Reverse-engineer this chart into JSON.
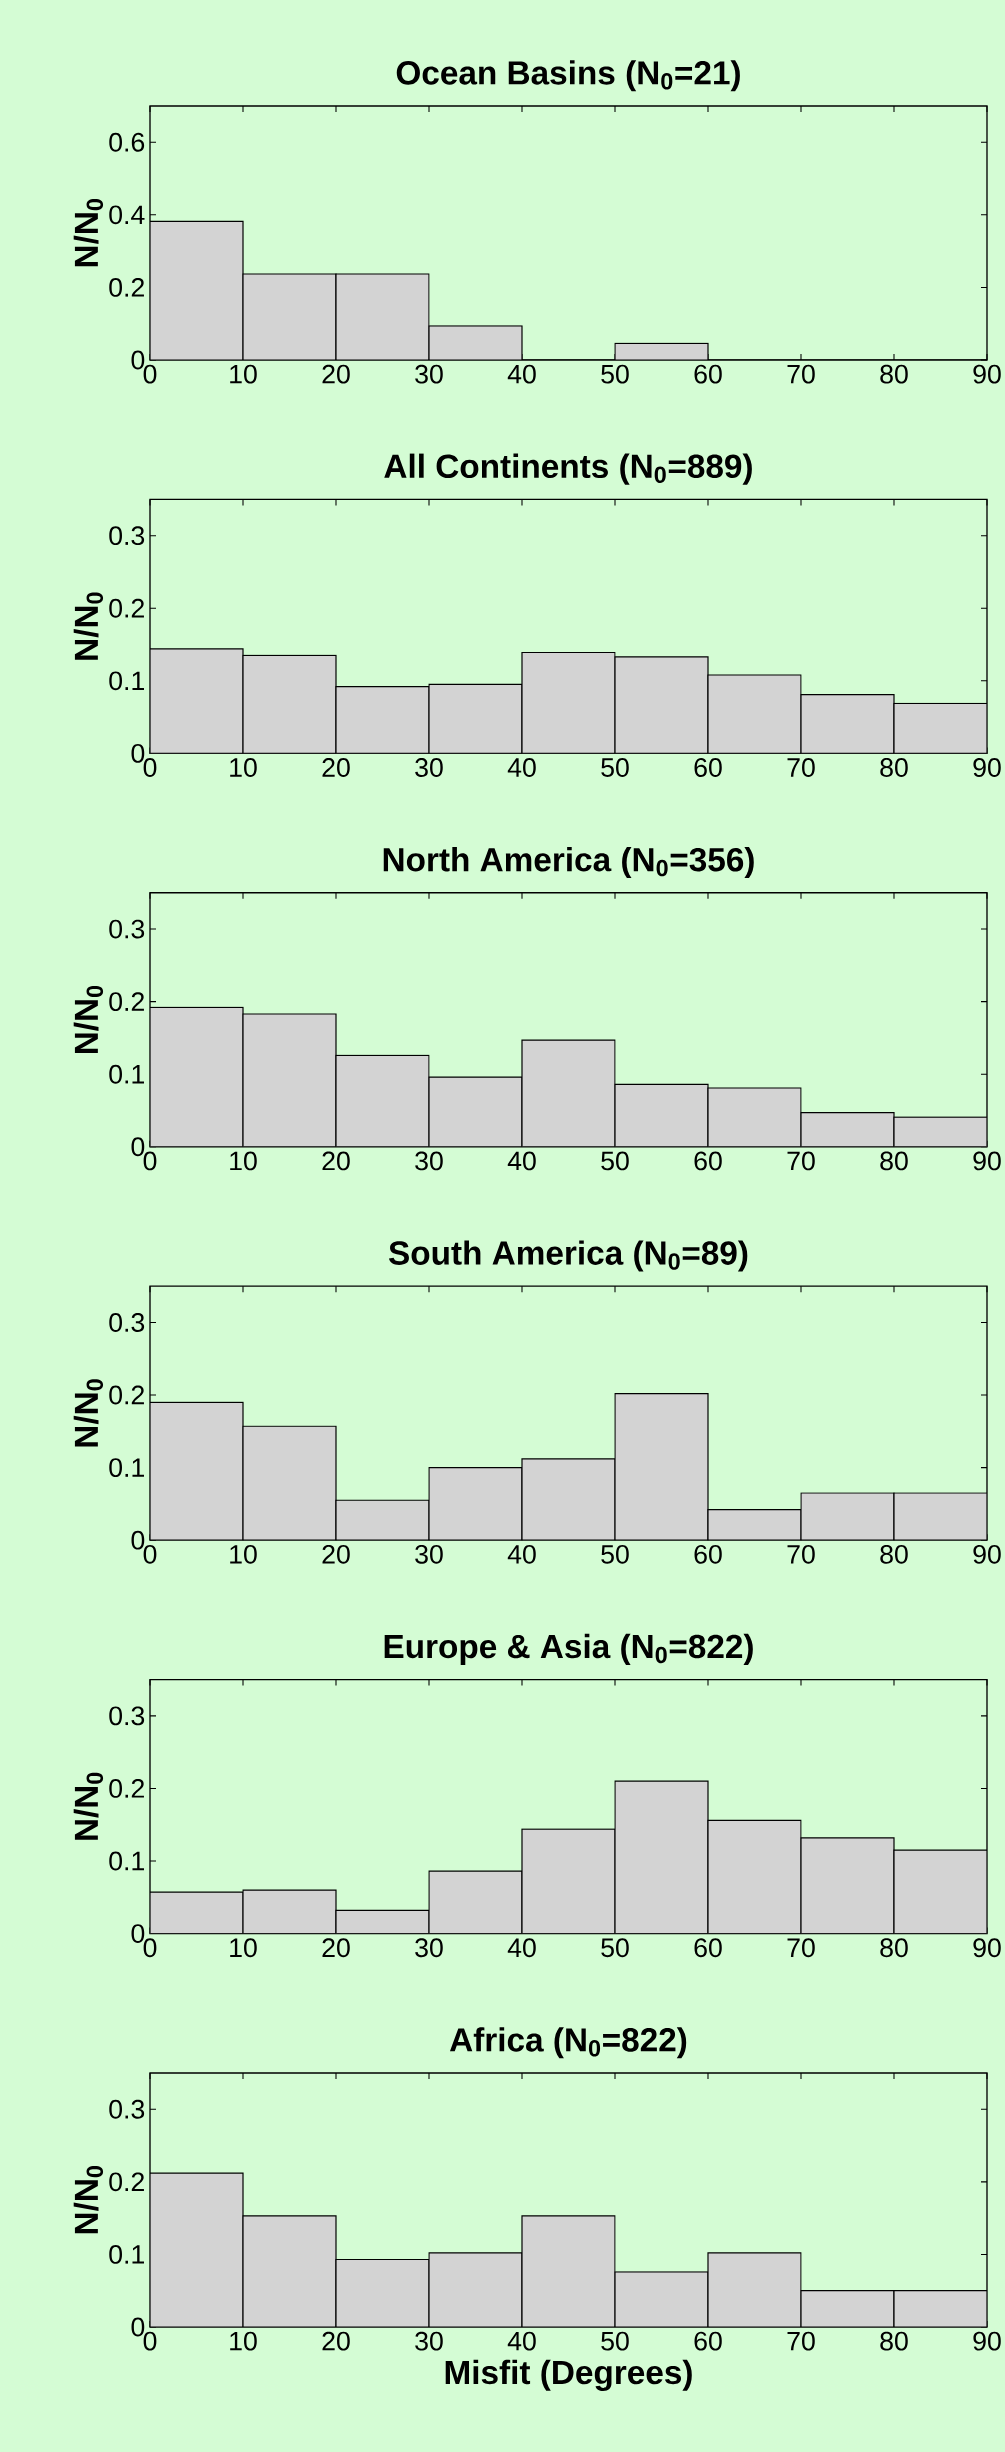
{
  "chart_data": [
    {
      "type": "histogram",
      "title": "Ocean Basins (N$_{0}$=21)",
      "ylabel": "N/N$_{0}$",
      "bins": [
        0,
        10,
        20,
        30,
        40,
        50,
        60,
        70,
        80,
        90
      ],
      "values": [
        0.382,
        0.237,
        0.237,
        0.094,
        0,
        0.046,
        0,
        0,
        0
      ],
      "color": "#d3d3d3",
      "xlim": [
        0,
        90
      ],
      "ylim": [
        0,
        0.7
      ],
      "xticks": [
        0,
        10,
        20,
        30,
        40,
        50,
        60,
        70,
        80,
        90
      ],
      "yticks": [
        0,
        0.2,
        0.4,
        0.6
      ]
    },
    {
      "type": "histogram",
      "title": "All Continents (N$_{0}$=889)",
      "ylabel": "N/N$_{0}$",
      "bins": [
        0,
        10,
        20,
        30,
        40,
        50,
        60,
        70,
        80,
        90
      ],
      "values": [
        0.144,
        0.135,
        0.092,
        0.095,
        0.139,
        0.133,
        0.108,
        0.081,
        0.069
      ],
      "color": "#d3d3d3",
      "xlim": [
        0,
        90
      ],
      "ylim": [
        0,
        0.35
      ],
      "xticks": [
        0,
        10,
        20,
        30,
        40,
        50,
        60,
        70,
        80,
        90
      ],
      "yticks": [
        0,
        0.1,
        0.2,
        0.3
      ]
    },
    {
      "type": "histogram",
      "title": "North America (N$_{0}$=356)",
      "ylabel": "N/N$_{0}$",
      "bins": [
        0,
        10,
        20,
        30,
        40,
        50,
        60,
        70,
        80,
        90
      ],
      "values": [
        0.192,
        0.183,
        0.126,
        0.096,
        0.147,
        0.086,
        0.081,
        0.047,
        0.041
      ],
      "color": "#d3d3d3",
      "xlim": [
        0,
        90
      ],
      "ylim": [
        0,
        0.35
      ],
      "xticks": [
        0,
        10,
        20,
        30,
        40,
        50,
        60,
        70,
        80,
        90
      ],
      "yticks": [
        0,
        0.1,
        0.2,
        0.3
      ]
    },
    {
      "type": "histogram",
      "title": "South America (N$_{0}$=89)",
      "ylabel": "N/N$_{0}$",
      "bins": [
        0,
        10,
        20,
        30,
        40,
        50,
        60,
        70,
        80,
        90
      ],
      "values": [
        0.19,
        0.157,
        0.055,
        0.1,
        0.112,
        0.202,
        0.042,
        0.065,
        0.065
      ],
      "color": "#d3d3d3",
      "xlim": [
        0,
        90
      ],
      "ylim": [
        0,
        0.35
      ],
      "xticks": [
        0,
        10,
        20,
        30,
        40,
        50,
        60,
        70,
        80,
        90
      ],
      "yticks": [
        0,
        0.1,
        0.2,
        0.3
      ]
    },
    {
      "type": "histogram",
      "title": "Europe & Asia (N$_{0}$=822)",
      "ylabel": "N/N$_{0}$",
      "bins": [
        0,
        10,
        20,
        30,
        40,
        50,
        60,
        70,
        80,
        90
      ],
      "values": [
        0.057,
        0.06,
        0.032,
        0.086,
        0.144,
        0.21,
        0.156,
        0.132,
        0.115
      ],
      "color": "#d3d3d3",
      "xlim": [
        0,
        90
      ],
      "ylim": [
        0,
        0.35
      ],
      "xticks": [
        0,
        10,
        20,
        30,
        40,
        50,
        60,
        70,
        80,
        90
      ],
      "yticks": [
        0,
        0.1,
        0.2,
        0.3
      ]
    },
    {
      "type": "histogram",
      "title": "Africa (N$_{0}$=822)",
      "ylabel": "N/N$_{0}$",
      "xlabel": "Misfit (Degrees)",
      "bins": [
        0,
        10,
        20,
        30,
        40,
        50,
        60,
        70,
        80,
        90
      ],
      "values": [
        0.212,
        0.153,
        0.093,
        0.102,
        0.153,
        0.076,
        0.102,
        0.05,
        0.05
      ],
      "color": "#d3d3d3",
      "xlim": [
        0,
        90
      ],
      "ylim": [
        0,
        0.35
      ],
      "xticks": [
        0,
        10,
        20,
        30,
        40,
        50,
        60,
        70,
        80,
        90
      ],
      "yticks": [
        0,
        0.1,
        0.2,
        0.3
      ]
    }
  ]
}
